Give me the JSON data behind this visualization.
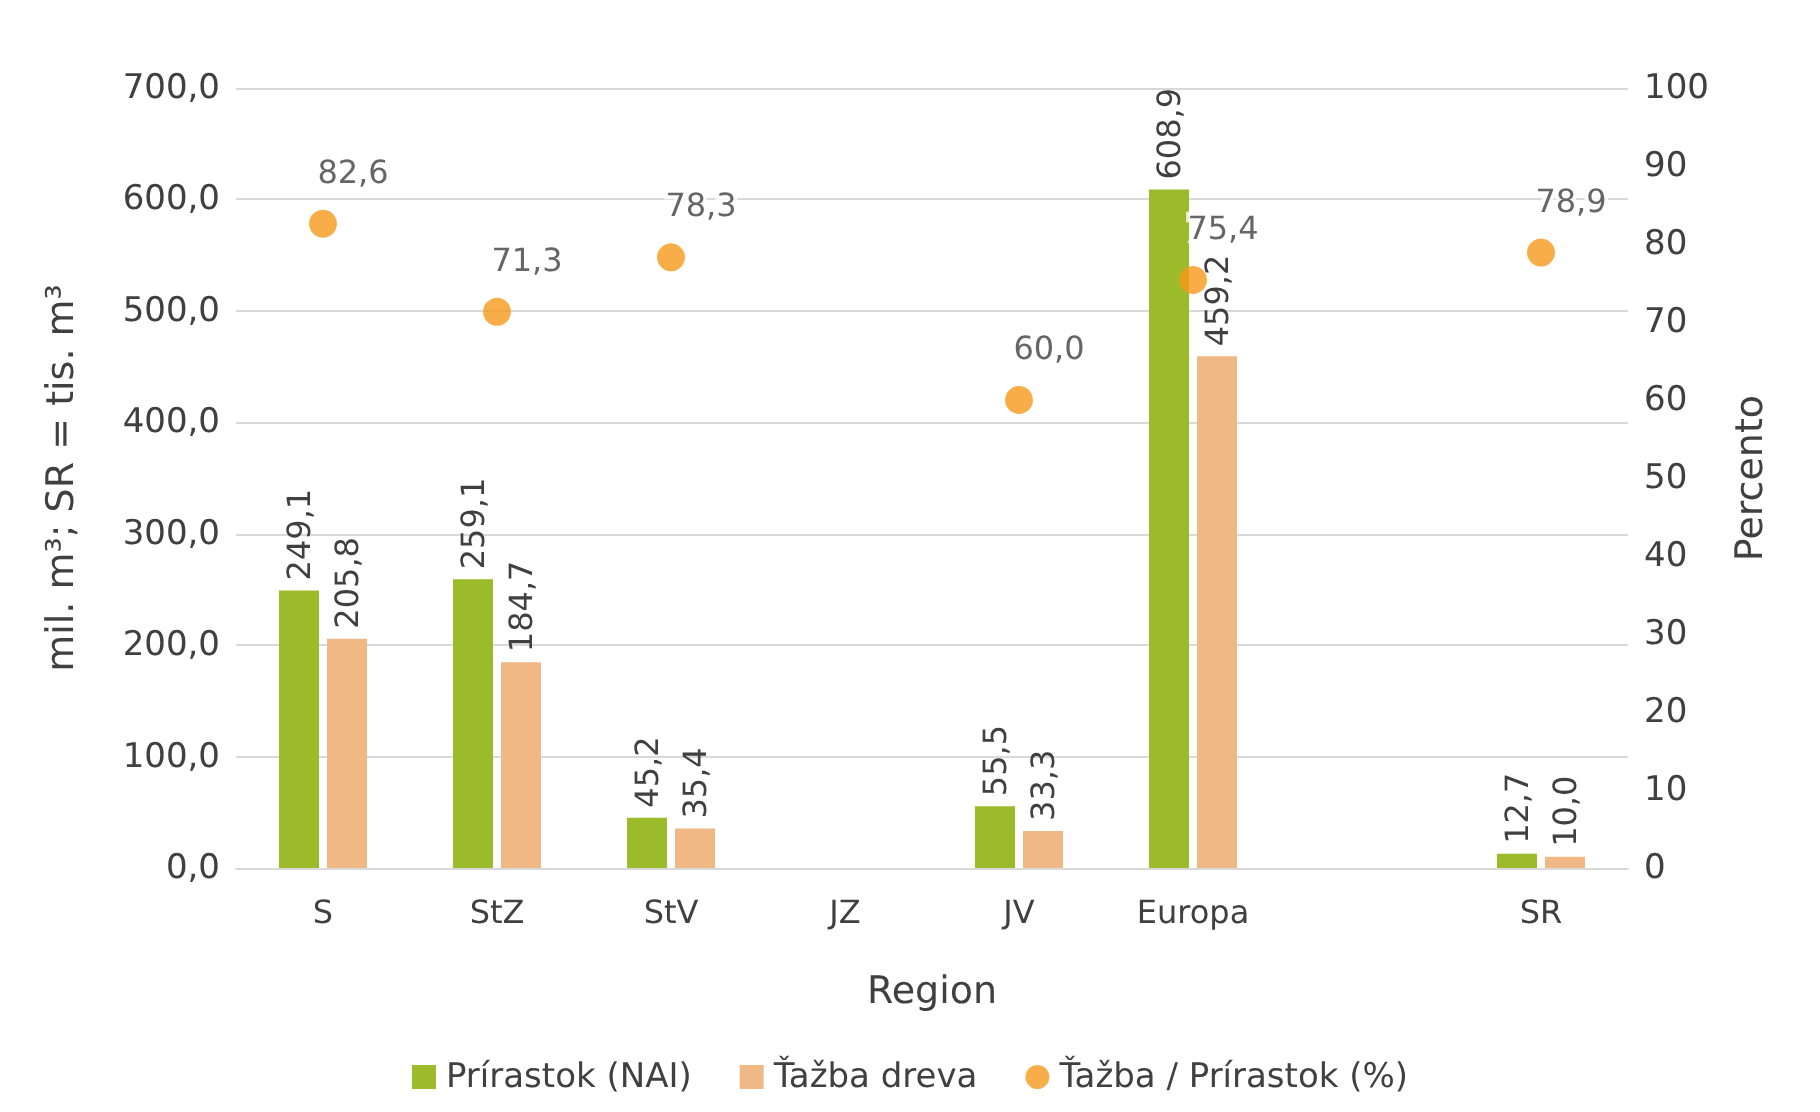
{
  "chart_data": {
    "type": "bar",
    "xlabel": "Region",
    "ylabel": "mil. m³; SR = tis. m³",
    "y2label": "Percento",
    "categories": [
      "S",
      "StZ",
      "StV",
      "JZ",
      "JV",
      "Europa",
      null,
      "SR"
    ],
    "series": [
      {
        "name": "Prírastok (NAI)",
        "color": "#9bbb2a",
        "values": [
          249.1,
          259.1,
          45.2,
          null,
          55.5,
          608.9,
          null,
          12.7
        ],
        "value_labels": [
          "249,1",
          "259,1",
          "45,2",
          null,
          "55,5",
          "608,9",
          null,
          "12,7"
        ]
      },
      {
        "name": "Ťažba dreva",
        "color": "#efb884",
        "values": [
          205.8,
          184.7,
          35.4,
          null,
          33.3,
          459.2,
          null,
          10.0
        ],
        "value_labels": [
          "205,8",
          "184,7",
          "35,4",
          null,
          "33,3",
          "459,2",
          null,
          "10,0"
        ]
      },
      {
        "name": "Ťažba / Prírastok (%)",
        "type": "scatter",
        "axis": "y2",
        "marker": "circle",
        "color": "#f59a1a",
        "values": [
          82.6,
          71.3,
          78.3,
          null,
          60.0,
          75.4,
          null,
          78.9
        ],
        "value_labels": [
          "82,6",
          "71,3",
          "78,3",
          null,
          "60,0",
          "75,4",
          null,
          "78,9"
        ]
      }
    ],
    "ylim": [
      0,
      700
    ],
    "yticks": [
      {
        "value": 0,
        "label": "0,0"
      },
      {
        "value": 100,
        "label": "100,0"
      },
      {
        "value": 200,
        "label": "200,0"
      },
      {
        "value": 300,
        "label": "300,0"
      },
      {
        "value": 400,
        "label": "400,0"
      },
      {
        "value": 500,
        "label": "500,0"
      },
      {
        "value": 600,
        "label": "600,0"
      },
      {
        "value": 700,
        "label": "700,0"
      }
    ],
    "y2lim": [
      0,
      100
    ],
    "y2ticks": [
      0,
      10,
      20,
      30,
      40,
      50,
      60,
      70,
      80,
      90,
      100
    ],
    "grid": "y",
    "legend": "bottom"
  }
}
